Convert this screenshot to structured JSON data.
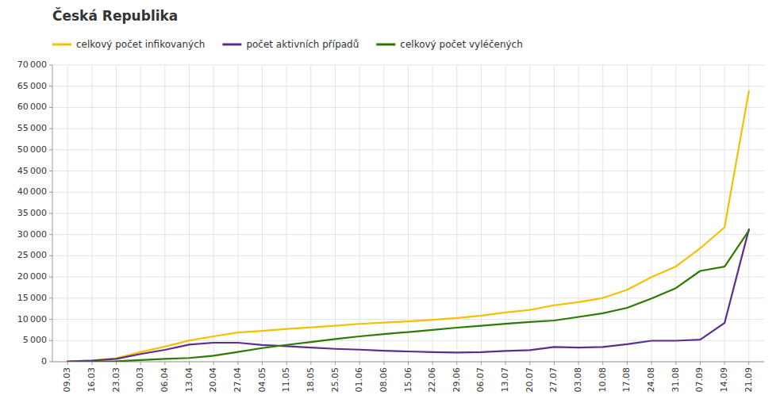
{
  "chart_data": {
    "type": "line",
    "title": "Česká Republika",
    "categories": [
      "09.03",
      "16.03",
      "23.03",
      "30.03",
      "06.04",
      "13.04",
      "20.04",
      "27.04",
      "04.05",
      "11.05",
      "18.05",
      "25.05",
      "01.06",
      "08.06",
      "15.06",
      "22.06",
      "29.06",
      "06.07",
      "13.07",
      "20.07",
      "27.07",
      "03.08",
      "10.08",
      "17.08",
      "24.08",
      "31.08",
      "07.09",
      "14.09",
      "21.09"
    ],
    "series": [
      {
        "name": "celkový počet infikovaných",
        "color": "#f5c000",
        "values": [
          94,
          298,
          833,
          2279,
          3589,
          5017,
          5985,
          6900,
          7273,
          7737,
          8106,
          8485,
          8938,
          9230,
          9538,
          9882,
          10309,
          10882,
          11611,
          12249,
          13330,
          14049,
          15051,
          16993,
          19996,
          22474,
          26773,
          31724,
          63858
        ]
      },
      {
        "name": "počet aktivních případů",
        "color": "#5b2d8e",
        "values": [
          94,
          278,
          688,
          1820,
          2805,
          4050,
          4491,
          4488,
          3940,
          3665,
          3348,
          3041,
          2854,
          2591,
          2436,
          2263,
          2165,
          2287,
          2563,
          2754,
          3491,
          3355,
          3483,
          4154,
          4956,
          4957,
          5205,
          9133,
          31234
        ]
      },
      {
        "name": "celkový počet vyléčených",
        "color": "#2d7a00",
        "values": [
          0,
          15,
          103,
          391,
          696,
          886,
          1414,
          2316,
          3235,
          3972,
          4660,
          5348,
          5986,
          6541,
          7010,
          7520,
          8045,
          8491,
          8942,
          9381,
          9728,
          10578,
          11448,
          12718,
          14921,
          17380,
          21427,
          22440,
          30941
        ]
      }
    ],
    "ylim": [
      0,
      70000
    ],
    "yticks": [
      0,
      {
        "value": 5000,
        "label": "5 000"
      },
      {
        "value": 10000,
        "label": "10 000"
      },
      {
        "value": 15000,
        "label": "15 000"
      },
      {
        "value": 20000,
        "label": "20 000"
      },
      {
        "value": 25000,
        "label": "25 000"
      },
      {
        "value": 30000,
        "label": "30 000"
      },
      {
        "value": 35000,
        "label": "35 000"
      },
      {
        "value": 40000,
        "label": "40 000"
      },
      {
        "value": 45000,
        "label": "45 000"
      },
      {
        "value": 50000,
        "label": "50 000"
      },
      {
        "value": 55000,
        "label": "55 000"
      },
      {
        "value": 60000,
        "label": "60 000"
      },
      {
        "value": 65000,
        "label": "65 000"
      },
      {
        "value": 70000,
        "label": "70 000"
      }
    ],
    "grid": true,
    "legend": "upper-left"
  }
}
